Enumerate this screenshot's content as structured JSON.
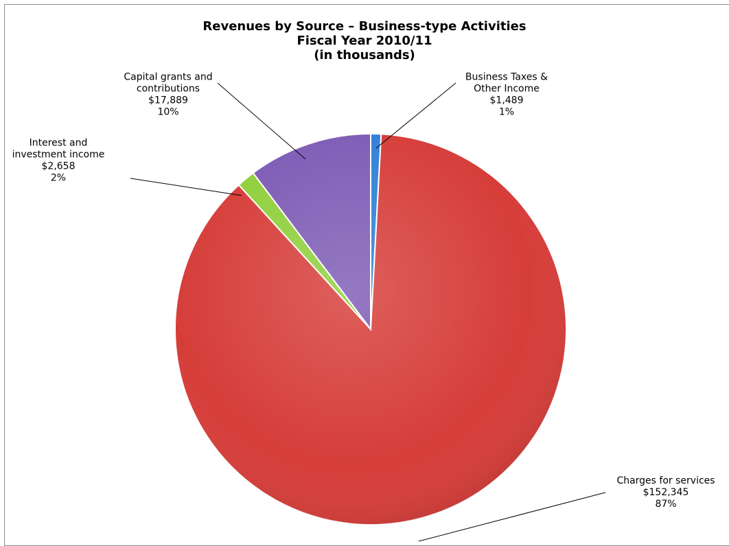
{
  "chart_data": {
    "type": "pie",
    "title": "Revenues by Source – Business-type Activities",
    "subtitle": [
      "Fiscal Year 2010/11",
      "(in thousands)"
    ],
    "slices": [
      {
        "name": "Business Taxes & Other Income",
        "label_lines": [
          "Business Taxes &",
          "Other Income"
        ],
        "amount": "$1,489",
        "value": 1489,
        "percent": "1%",
        "color": "#2f7fd6"
      },
      {
        "name": "Charges for services",
        "label_lines": [
          "Charges for services"
        ],
        "amount": "$152,345",
        "value": 152345,
        "percent": "87%",
        "color": "#d63d39"
      },
      {
        "name": "Interest and investment income",
        "label_lines": [
          "Interest and",
          "investment income"
        ],
        "amount": "$2,658",
        "value": 2658,
        "percent": "2%",
        "color": "#8fcf3c"
      },
      {
        "name": "Capital grants and contributions",
        "label_lines": [
          "Capital grants and",
          "contributions"
        ],
        "amount": "$17,889",
        "value": 17889,
        "percent": "10%",
        "color": "#7d5bb5"
      }
    ]
  }
}
